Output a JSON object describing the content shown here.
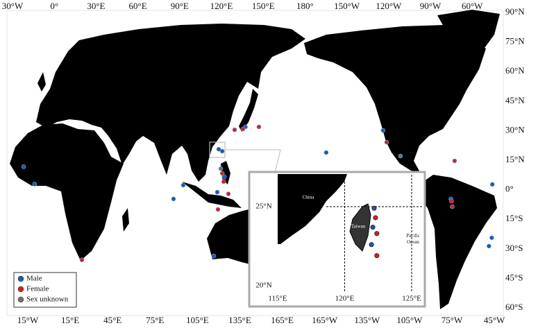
{
  "top_labels": [
    "30°W",
    "0°",
    "30°E",
    "60°E",
    "90°E",
    "120°E",
    "150°E",
    "180°",
    "150°W",
    "120°W",
    "90°W",
    "60°W"
  ],
  "bottom_labels": [
    "15°W",
    "15°E",
    "45°E",
    "75°E",
    "105°E",
    "135°E",
    "165°E",
    "165°W",
    "135°W",
    "105°W",
    "75°W",
    "45°W"
  ],
  "right_labels": [
    "90°N",
    "75°N",
    "60°N",
    "45°N",
    "30°N",
    "15°N",
    "0°",
    "15°S",
    "30°S",
    "45°S",
    "60°S"
  ],
  "legend": [
    {
      "label": "Male",
      "color": "#2855a8",
      "points": [
        [
          -16.7,
          12
        ],
        [
          -8.9,
          3
        ],
        [
          96.4,
          2.5
        ],
        [
          89.5,
          -4.6
        ],
        [
          118,
          -34
        ],
        [
          124,
          20
        ],
        [
          121.5,
          21
        ],
        [
          140.5,
          32.5
        ],
        [
          125.5,
          6.8
        ],
        [
          120.5,
          -1.1
        ],
        [
          -162.3,
          19.3
        ],
        [
          -122,
          30.7
        ],
        [
          -74,
          -4.6
        ],
        [
          -44.6,
          2.9
        ],
        [
          -45,
          -24.6
        ],
        [
          -47,
          -28.9
        ]
      ],
      "inset": [
        [
          122.2,
          24.9
        ],
        [
          122.1,
          23.7
        ],
        [
          122.0,
          22.6
        ]
      ]
    },
    {
      "label": "Female",
      "color": "#d42020",
      "points": [
        [
          24.6,
          -36
        ],
        [
          132.8,
          31
        ],
        [
          138.7,
          31.4
        ],
        [
          150,
          32.5
        ],
        [
          124,
          8.6
        ],
        [
          125,
          4.3
        ],
        [
          121,
          -10
        ],
        [
          128.4,
          -2
        ],
        [
          -119.5,
          24.6
        ],
        [
          -71.3,
          15
        ],
        [
          -73.5,
          -5.7
        ],
        [
          -73,
          -8.6
        ]
      ],
      "inset": [
        [
          122.3,
          24.3
        ],
        [
          122.4,
          23.3
        ],
        [
          122.4,
          21.9
        ]
      ]
    },
    {
      "label": "Sex unknown",
      "color": "#707070",
      "points": [
        [
          123,
          11
        ],
        [
          -109.7,
          17.5
        ]
      ],
      "inset": []
    }
  ],
  "inset": {
    "lat_labels": [
      {
        "value": 25,
        "label": "25°N"
      },
      {
        "value": 20,
        "label": "20°N"
      }
    ],
    "lon_labels": [
      {
        "value": 115,
        "label": "115°E"
      },
      {
        "value": 120,
        "label": "120°E"
      },
      {
        "value": 125,
        "label": "125°E"
      }
    ],
    "china": "China",
    "taiwan": "Taiwan",
    "ocean": "Pacific Ocean"
  }
}
